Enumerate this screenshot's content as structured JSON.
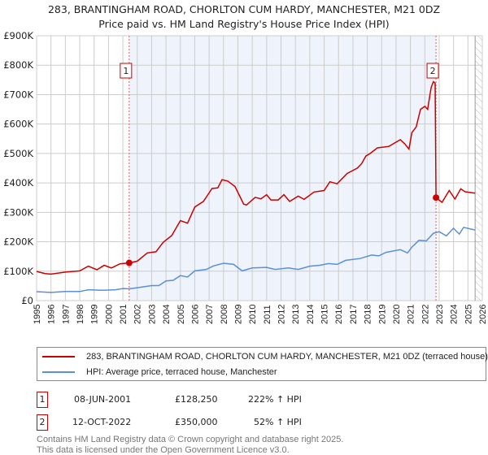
{
  "title": "283, BRANTINGHAM ROAD, CHORLTON CUM HARDY, MANCHESTER, M21 0DZ",
  "subtitle": "Price paid vs. HM Land Registry's House Price Index (HPI)",
  "colors": {
    "property": "#cc0000",
    "hpi": "#5b8fd6",
    "shade": "#eef3fc",
    "grid": "#cccccc"
  },
  "chart_data": {
    "type": "line",
    "title": "283, BRANTINGHAM ROAD, CHORLTON CUM HARDY, MANCHESTER, M21 0DZ",
    "xlim": [
      1995,
      2026
    ],
    "ylim": [
      0,
      900000
    ],
    "x_ticks": [
      "1995",
      "1996",
      "1997",
      "1998",
      "1999",
      "2000",
      "2001",
      "2002",
      "2003",
      "2004",
      "2005",
      "2006",
      "2007",
      "2008",
      "2009",
      "2010",
      "2011",
      "2012",
      "2013",
      "2014",
      "2015",
      "2016",
      "2017",
      "2018",
      "2019",
      "2020",
      "2021",
      "2022",
      "2023",
      "2024",
      "2025",
      "2026"
    ],
    "y_ticks": [
      {
        "v": 0,
        "label": "£0"
      },
      {
        "v": 100000,
        "label": "£100K"
      },
      {
        "v": 200000,
        "label": "£200K"
      },
      {
        "v": 300000,
        "label": "£300K"
      },
      {
        "v": 400000,
        "label": "£400K"
      },
      {
        "v": 500000,
        "label": "£500K"
      },
      {
        "v": 600000,
        "label": "£600K"
      },
      {
        "v": 700000,
        "label": "£700K"
      },
      {
        "v": 800000,
        "label": "£800K"
      },
      {
        "v": 900000,
        "label": "£900K"
      }
    ],
    "grid": true,
    "shaded_range": [
      2001.44,
      2022.78
    ],
    "hatched_from": 2025.5,
    "series": [
      {
        "name": "283, BRANTINGHAM ROAD, CHORLTON CUM HARDY, MANCHESTER, M21 0DZ (terraced house)",
        "color": "#cc0000",
        "points": [
          [
            1995,
            99
          ],
          [
            1995.6,
            92
          ],
          [
            1996,
            90
          ],
          [
            1997,
            97
          ],
          [
            1998,
            101
          ],
          [
            1998.6,
            117
          ],
          [
            1999.2,
            105
          ],
          [
            1999.7,
            120
          ],
          [
            2000.2,
            111
          ],
          [
            2000.8,
            125
          ],
          [
            2001.44,
            128.25
          ],
          [
            2002,
            134
          ],
          [
            2002.7,
            162
          ],
          [
            2003.3,
            166
          ],
          [
            2003.8,
            198
          ],
          [
            2004.4,
            221
          ],
          [
            2005,
            272
          ],
          [
            2005.5,
            263
          ],
          [
            2006,
            318
          ],
          [
            2006.6,
            337
          ],
          [
            2007.2,
            381
          ],
          [
            2007.6,
            383
          ],
          [
            2007.9,
            411
          ],
          [
            2008.3,
            406
          ],
          [
            2008.8,
            388
          ],
          [
            2009.4,
            328
          ],
          [
            2009.6,
            325
          ],
          [
            2010.2,
            351
          ],
          [
            2010.6,
            346
          ],
          [
            2011,
            360
          ],
          [
            2011.3,
            342
          ],
          [
            2011.8,
            342
          ],
          [
            2012.2,
            360
          ],
          [
            2012.6,
            337
          ],
          [
            2013.2,
            355
          ],
          [
            2013.6,
            344
          ],
          [
            2014.3,
            369
          ],
          [
            2015,
            374
          ],
          [
            2015.4,
            404
          ],
          [
            2015.9,
            397
          ],
          [
            2016.6,
            432
          ],
          [
            2017.3,
            450
          ],
          [
            2017.6,
            465
          ],
          [
            2017.9,
            491
          ],
          [
            2018.2,
            500
          ],
          [
            2018.7,
            519
          ],
          [
            2019.5,
            524
          ],
          [
            2020.3,
            547
          ],
          [
            2020.6,
            533
          ],
          [
            2020.9,
            515
          ],
          [
            2021.1,
            571
          ],
          [
            2021.4,
            590
          ],
          [
            2021.7,
            650
          ],
          [
            2022.0,
            660
          ],
          [
            2022.2,
            650
          ],
          [
            2022.35,
            697
          ],
          [
            2022.45,
            725
          ],
          [
            2022.6,
            744
          ],
          [
            2022.72,
            739
          ],
          [
            2022.78,
            350
          ],
          [
            2023.2,
            334
          ],
          [
            2023.7,
            374
          ],
          [
            2024.1,
            345
          ],
          [
            2024.5,
            380
          ],
          [
            2024.8,
            370
          ],
          [
            2025.5,
            365
          ]
        ]
      },
      {
        "name": "HPI: Average price, terraced house, Manchester",
        "color": "#5b8fd6",
        "points": [
          [
            1995,
            30.5
          ],
          [
            1996,
            28
          ],
          [
            1997,
            31
          ],
          [
            1998,
            31
          ],
          [
            1998.6,
            37
          ],
          [
            1999.5,
            35
          ],
          [
            2000.5,
            37
          ],
          [
            2001,
            41
          ],
          [
            2001.44,
            40
          ],
          [
            2002,
            44
          ],
          [
            2003,
            51
          ],
          [
            2003.5,
            51
          ],
          [
            2004,
            67
          ],
          [
            2004.5,
            69
          ],
          [
            2005,
            85
          ],
          [
            2005.5,
            80
          ],
          [
            2006,
            101
          ],
          [
            2006.8,
            106
          ],
          [
            2007.3,
            118
          ],
          [
            2008,
            127
          ],
          [
            2008.7,
            123
          ],
          [
            2009.3,
            101
          ],
          [
            2010,
            111
          ],
          [
            2011,
            113
          ],
          [
            2011.6,
            106
          ],
          [
            2012.5,
            111
          ],
          [
            2013.2,
            106
          ],
          [
            2014,
            117
          ],
          [
            2014.7,
            120
          ],
          [
            2015.3,
            126
          ],
          [
            2015.9,
            123
          ],
          [
            2016.5,
            137
          ],
          [
            2017.5,
            143
          ],
          [
            2018.3,
            155
          ],
          [
            2018.8,
            152
          ],
          [
            2019.3,
            164
          ],
          [
            2020.3,
            173
          ],
          [
            2020.8,
            162
          ],
          [
            2021.1,
            182
          ],
          [
            2021.6,
            205
          ],
          [
            2022.1,
            203
          ],
          [
            2022.6,
            229
          ],
          [
            2023.0,
            234
          ],
          [
            2023.5,
            220
          ],
          [
            2024.0,
            246
          ],
          [
            2024.4,
            226
          ],
          [
            2024.7,
            249
          ],
          [
            2025.5,
            240
          ]
        ]
      }
    ],
    "y_units": "thousands GBP",
    "annotations": [
      {
        "label": "1",
        "x": 2001.44,
        "y": 128250
      },
      {
        "label": "2",
        "x": 2022.78,
        "y": 350000
      }
    ]
  },
  "legend": {
    "property": "283, BRANTINGHAM ROAD, CHORLTON CUM HARDY, MANCHESTER, M21 0DZ (terraced house)",
    "hpi": "HPI: Average price, terraced house, Manchester"
  },
  "sales": [
    {
      "num": "1",
      "date": "08-JUN-2001",
      "price": "£128,250",
      "hpi": "222% ↑ HPI"
    },
    {
      "num": "2",
      "date": "12-OCT-2022",
      "price": "£350,000",
      "hpi": "52% ↑ HPI"
    }
  ],
  "footer": {
    "line1": "Contains HM Land Registry data © Crown copyright and database right 2025.",
    "line2": "This data is licensed under the Open Government Licence v3.0."
  }
}
